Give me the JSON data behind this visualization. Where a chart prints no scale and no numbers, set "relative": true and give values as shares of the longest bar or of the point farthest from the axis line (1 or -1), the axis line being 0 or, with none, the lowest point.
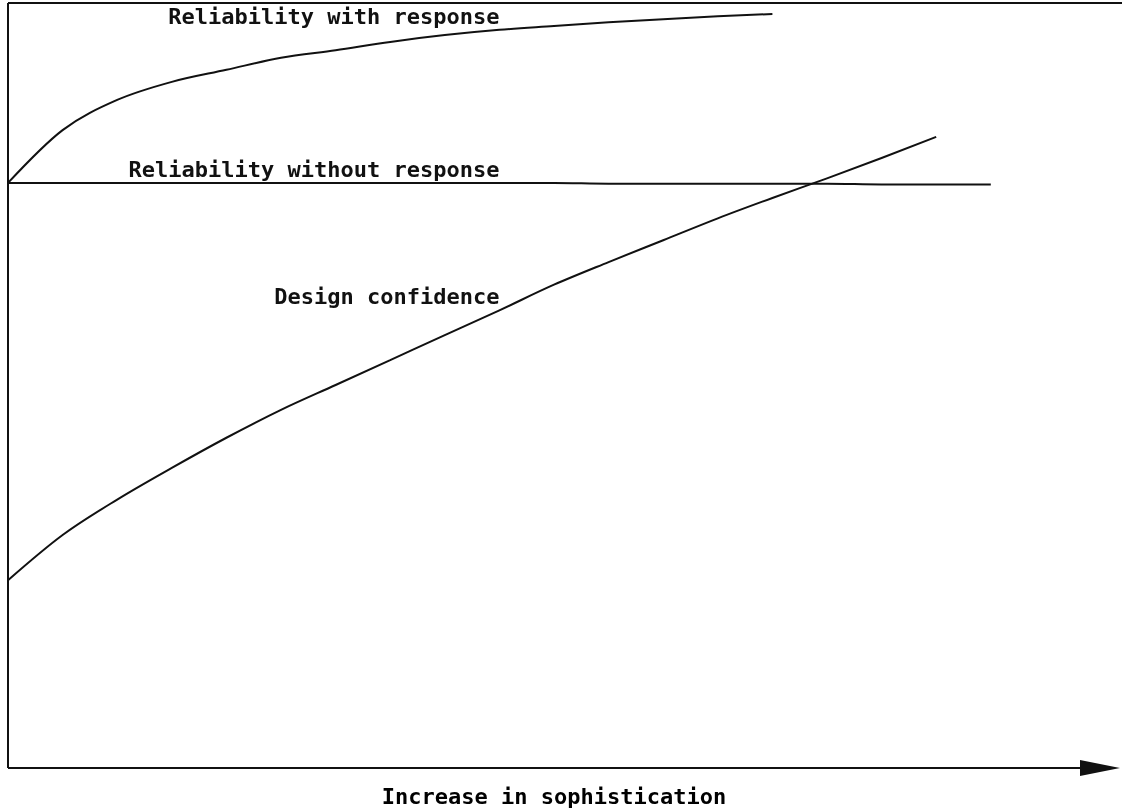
{
  "chart_data": {
    "type": "line",
    "relative": true,
    "xlabel": "Increase in sophistication",
    "categories": [
      null,
      null,
      null,
      null,
      null,
      null,
      null,
      null,
      null,
      null,
      null,
      null,
      null,
      null,
      null,
      null,
      null,
      null,
      null,
      null,
      null
    ],
    "series": [
      {
        "name": "Reliability with response",
        "color": "#111111",
        "values": [
          0.776,
          0.846,
          0.886,
          0.91,
          0.926,
          0.942,
          0.952,
          0.963,
          0.972,
          0.979,
          0.984,
          0.989,
          0.993,
          0.997,
          1,
          null,
          null,
          null,
          null,
          null,
          null
        ]
      },
      {
        "name": "Reliability without response",
        "color": "#111111",
        "values": [
          0.776,
          0.776,
          0.776,
          0.776,
          0.776,
          0.776,
          0.776,
          0.776,
          0.776,
          0.776,
          0.776,
          0.775,
          0.775,
          0.775,
          0.775,
          0.775,
          0.774,
          0.774,
          0.774,
          null,
          null
        ]
      },
      {
        "name": "Design confidence",
        "color": "#111111",
        "values": [
          0.249,
          0.309,
          0.356,
          0.398,
          0.438,
          0.475,
          0.508,
          0.541,
          0.574,
          0.607,
          0.641,
          0.671,
          0.7,
          0.729,
          0.756,
          0.782,
          0.809,
          0.837,
          null,
          null,
          null
        ]
      }
    ]
  }
}
